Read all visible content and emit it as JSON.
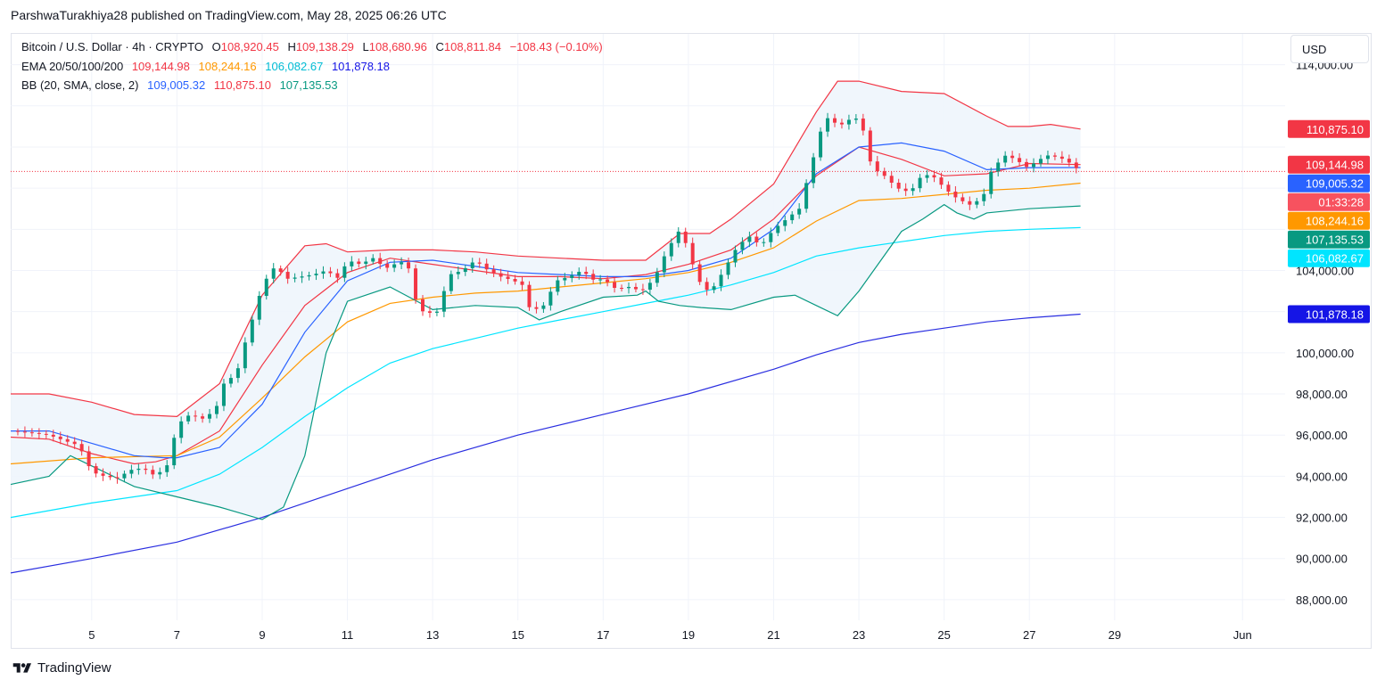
{
  "header": "ParshwaTurakhiya28 published on TradingView.com, May 28, 2025 06:26 UTC",
  "legend": {
    "symbol": "Bitcoin / U.S. Dollar · 4h · CRYPTO",
    "o_label": "O",
    "o": "108,920.45",
    "h_label": "H",
    "h": "109,138.29",
    "l_label": "L",
    "l": "108,680.96",
    "c_label": "C",
    "c": "108,811.84",
    "change": "−108.43 (−0.10%)",
    "ema_label": "EMA 20/50/100/200",
    "ema20": "109,144.98",
    "ema50": "108,244.16",
    "ema100": "106,082.67",
    "ema200": "101,878.18",
    "bb_label": "BB (20, SMA, close, 2)",
    "bb_basis": "109,005.32",
    "bb_upper": "110,875.10",
    "bb_lower": "107,135.53"
  },
  "currency": "USD",
  "countdown": "01:33:28",
  "footer": "TradingView",
  "colors": {
    "up": "#089981",
    "down": "#f23645",
    "ema20": "#f23645",
    "ema50": "#ff9800",
    "ema100": "#00e5ff",
    "ema200": "#2a2ee0",
    "bb_basis": "#2962ff",
    "bb_upper": "#f23645",
    "bb_lower": "#089981",
    "bb_fill": "#eef5fc"
  },
  "chart_data": {
    "type": "candlestick",
    "timeframe": "4h",
    "ylim": [
      87000,
      115500
    ],
    "y_ticks": [
      88000,
      90000,
      92000,
      94000,
      96000,
      98000,
      100000,
      104000,
      114000
    ],
    "y_tick_labels": [
      "88,000.00",
      "90,000.00",
      "92,000.00",
      "94,000.00",
      "96,000.00",
      "98,000.00",
      "100,000.00",
      "104,000.00",
      "114,000.00"
    ],
    "x_ticks": [
      "5",
      "7",
      "9",
      "11",
      "13",
      "15",
      "17",
      "19",
      "21",
      "23",
      "25",
      "27",
      "29",
      "Jun"
    ],
    "x_tick_days": [
      5,
      7,
      9,
      11,
      13,
      15,
      17,
      19,
      21,
      23,
      25,
      27,
      29,
      32
    ],
    "x_range_days": [
      3.1,
      33
    ],
    "price_labels": [
      {
        "text": "110,875.10",
        "value": 110875.1,
        "color": "#f23645"
      },
      {
        "text": "109,144.98",
        "value": 109144.98,
        "color": "#f23645"
      },
      {
        "text": "109,005.32",
        "value": 109005.32,
        "color": "#2962ff"
      },
      {
        "text": "01:33:28",
        "value": 108411,
        "color": "#f7525f"
      },
      {
        "text": "108,244.16",
        "value": 108244.16,
        "color": "#ff9800"
      },
      {
        "text": "107,135.53",
        "value": 107135.53,
        "color": "#089981"
      },
      {
        "text": "106,082.67",
        "value": 106082.67,
        "color": "#00e5ff"
      },
      {
        "text": "101,878.18",
        "value": 101878.18,
        "color": "#1515e6"
      }
    ],
    "current_price": 108811.84,
    "close_path": [
      [
        3.1,
        96200
      ],
      [
        3.6,
        96100
      ],
      [
        4.0,
        96000
      ],
      [
        4.4,
        95700
      ],
      [
        4.7,
        95500
      ],
      [
        5.0,
        94200
      ],
      [
        5.3,
        94000
      ],
      [
        5.6,
        93900
      ],
      [
        5.9,
        94300
      ],
      [
        6.2,
        94400
      ],
      [
        6.5,
        94000
      ],
      [
        6.8,
        94600
      ],
      [
        7.0,
        96500
      ],
      [
        7.3,
        97000
      ],
      [
        7.6,
        96800
      ],
      [
        7.9,
        97200
      ],
      [
        8.1,
        98500
      ],
      [
        8.4,
        99000
      ],
      [
        8.6,
        100500
      ],
      [
        8.9,
        102500
      ],
      [
        9.0,
        103300
      ],
      [
        9.3,
        104200
      ],
      [
        9.6,
        103600
      ],
      [
        9.9,
        103700
      ],
      [
        10.2,
        103800
      ],
      [
        10.5,
        104000
      ],
      [
        10.8,
        103600
      ],
      [
        11.0,
        104500
      ],
      [
        11.3,
        104300
      ],
      [
        11.6,
        104600
      ],
      [
        11.9,
        104100
      ],
      [
        12.2,
        104400
      ],
      [
        12.4,
        104400
      ],
      [
        12.6,
        102600
      ],
      [
        12.8,
        101900
      ],
      [
        13.1,
        102000
      ],
      [
        13.4,
        103800
      ],
      [
        13.7,
        104000
      ],
      [
        14.0,
        104500
      ],
      [
        14.3,
        104000
      ],
      [
        14.6,
        103700
      ],
      [
        14.9,
        103500
      ],
      [
        15.1,
        103300
      ],
      [
        15.3,
        102000
      ],
      [
        15.6,
        102300
      ],
      [
        15.9,
        103500
      ],
      [
        16.2,
        103700
      ],
      [
        16.5,
        104000
      ],
      [
        16.8,
        103500
      ],
      [
        17.0,
        103600
      ],
      [
        17.3,
        103100
      ],
      [
        17.6,
        103200
      ],
      [
        17.9,
        103000
      ],
      [
        18.2,
        103600
      ],
      [
        18.5,
        105000
      ],
      [
        18.8,
        106000
      ],
      [
        19.0,
        105000
      ],
      [
        19.2,
        103600
      ],
      [
        19.5,
        102900
      ],
      [
        19.8,
        103900
      ],
      [
        20.1,
        105000
      ],
      [
        20.4,
        105700
      ],
      [
        20.7,
        105200
      ],
      [
        21.0,
        106000
      ],
      [
        21.3,
        106500
      ],
      [
        21.6,
        107000
      ],
      [
        21.8,
        108500
      ],
      [
        22.0,
        110000
      ],
      [
        22.2,
        111500
      ],
      [
        22.4,
        111200
      ],
      [
        22.6,
        111100
      ],
      [
        22.9,
        111500
      ],
      [
        23.1,
        110800
      ],
      [
        23.3,
        109000
      ],
      [
        23.6,
        108600
      ],
      [
        23.9,
        108000
      ],
      [
        24.2,
        107800
      ],
      [
        24.5,
        108700
      ],
      [
        24.8,
        108500
      ],
      [
        25.0,
        108000
      ],
      [
        25.3,
        107500
      ],
      [
        25.6,
        107200
      ],
      [
        25.9,
        107500
      ],
      [
        26.1,
        108800
      ],
      [
        26.4,
        109600
      ],
      [
        26.7,
        109400
      ],
      [
        26.9,
        109000
      ],
      [
        27.1,
        109200
      ],
      [
        27.4,
        109600
      ],
      [
        27.7,
        109500
      ],
      [
        27.9,
        109300
      ],
      [
        28.2,
        108811.84
      ]
    ],
    "series": [
      {
        "name": "EMA 20",
        "color": "#f23645",
        "points": [
          [
            3.1,
            95900
          ],
          [
            4,
            95800
          ],
          [
            5,
            95100
          ],
          [
            6,
            94600
          ],
          [
            6.5,
            94700
          ],
          [
            7,
            95000
          ],
          [
            8,
            96200
          ],
          [
            9,
            99400
          ],
          [
            10,
            102300
          ],
          [
            11,
            103900
          ],
          [
            12,
            104600
          ],
          [
            13,
            104300
          ],
          [
            14,
            104000
          ],
          [
            15,
            103700
          ],
          [
            16,
            103700
          ],
          [
            17,
            103600
          ],
          [
            18,
            103800
          ],
          [
            19,
            104300
          ],
          [
            20,
            105000
          ],
          [
            21,
            106500
          ],
          [
            22,
            108600
          ],
          [
            23,
            110000
          ],
          [
            24,
            109400
          ],
          [
            25,
            108600
          ],
          [
            26,
            108700
          ],
          [
            27,
            109200
          ],
          [
            28.2,
            109145
          ]
        ]
      },
      {
        "name": "EMA 50",
        "color": "#ff9800",
        "points": [
          [
            3.1,
            94600
          ],
          [
            5,
            94900
          ],
          [
            7,
            95000
          ],
          [
            8,
            95900
          ],
          [
            9,
            97800
          ],
          [
            10,
            99800
          ],
          [
            11,
            101500
          ],
          [
            12,
            102400
          ],
          [
            13,
            102700
          ],
          [
            14,
            102900
          ],
          [
            15,
            103000
          ],
          [
            16,
            103200
          ],
          [
            17,
            103400
          ],
          [
            18,
            103600
          ],
          [
            19,
            103900
          ],
          [
            20,
            104400
          ],
          [
            21,
            105100
          ],
          [
            22,
            106400
          ],
          [
            23,
            107400
          ],
          [
            24,
            107500
          ],
          [
            25,
            107700
          ],
          [
            26,
            107900
          ],
          [
            27,
            108000
          ],
          [
            28.2,
            108244
          ]
        ]
      },
      {
        "name": "EMA 100",
        "color": "#00e5ff",
        "points": [
          [
            3.1,
            92000
          ],
          [
            5,
            92700
          ],
          [
            7,
            93300
          ],
          [
            8,
            94100
          ],
          [
            9,
            95400
          ],
          [
            10,
            96900
          ],
          [
            11,
            98300
          ],
          [
            12,
            99500
          ],
          [
            13,
            100200
          ],
          [
            14,
            100700
          ],
          [
            15,
            101200
          ],
          [
            16,
            101600
          ],
          [
            17,
            102000
          ],
          [
            18,
            102400
          ],
          [
            19,
            102800
          ],
          [
            20,
            103300
          ],
          [
            21,
            103900
          ],
          [
            22,
            104700
          ],
          [
            23,
            105100
          ],
          [
            24,
            105400
          ],
          [
            25,
            105700
          ],
          [
            26,
            105900
          ],
          [
            27,
            106000
          ],
          [
            28.2,
            106083
          ]
        ]
      },
      {
        "name": "EMA 200",
        "color": "#2a2ee0",
        "points": [
          [
            3.1,
            89300
          ],
          [
            5,
            90000
          ],
          [
            7,
            90800
          ],
          [
            9,
            92000
          ],
          [
            11,
            93400
          ],
          [
            13,
            94800
          ],
          [
            15,
            96000
          ],
          [
            17,
            97000
          ],
          [
            19,
            98000
          ],
          [
            21,
            99200
          ],
          [
            22,
            99900
          ],
          [
            23,
            100500
          ],
          [
            24,
            100900
          ],
          [
            25,
            101200
          ],
          [
            26,
            101500
          ],
          [
            27,
            101700
          ],
          [
            28.2,
            101878
          ]
        ]
      },
      {
        "name": "BB Basis",
        "color": "#2962ff",
        "points": [
          [
            3.1,
            96200
          ],
          [
            4,
            96200
          ],
          [
            5,
            95600
          ],
          [
            6,
            95000
          ],
          [
            6.7,
            94900
          ],
          [
            7,
            94900
          ],
          [
            8,
            95400
          ],
          [
            9,
            97500
          ],
          [
            10,
            101000
          ],
          [
            11,
            103500
          ],
          [
            12,
            104400
          ],
          [
            13,
            104500
          ],
          [
            14,
            104200
          ],
          [
            15,
            103900
          ],
          [
            16,
            103800
          ],
          [
            17,
            103700
          ],
          [
            18,
            103700
          ],
          [
            19,
            104000
          ],
          [
            20,
            104600
          ],
          [
            21,
            106000
          ],
          [
            22,
            108700
          ],
          [
            23,
            110000
          ],
          [
            24,
            110200
          ],
          [
            25,
            109800
          ],
          [
            26,
            108900
          ],
          [
            27,
            109000
          ],
          [
            28.2,
            109005
          ]
        ]
      },
      {
        "name": "BB Upper",
        "color": "#f23645",
        "points": [
          [
            3.1,
            98000
          ],
          [
            4,
            98000
          ],
          [
            5,
            97600
          ],
          [
            6,
            97000
          ],
          [
            7,
            96900
          ],
          [
            8,
            98500
          ],
          [
            9,
            102800
          ],
          [
            10,
            105200
          ],
          [
            10.5,
            105300
          ],
          [
            11,
            104900
          ],
          [
            12,
            105000
          ],
          [
            13,
            105000
          ],
          [
            14,
            104900
          ],
          [
            15,
            104700
          ],
          [
            16,
            104600
          ],
          [
            17,
            104500
          ],
          [
            18,
            104500
          ],
          [
            18.8,
            105800
          ],
          [
            19.5,
            105800
          ],
          [
            20,
            106500
          ],
          [
            21,
            108200
          ],
          [
            22,
            111700
          ],
          [
            22.5,
            113200
          ],
          [
            23,
            113200
          ],
          [
            24,
            112700
          ],
          [
            25,
            112600
          ],
          [
            26,
            111500
          ],
          [
            26.5,
            111000
          ],
          [
            27,
            111000
          ],
          [
            27.5,
            111100
          ],
          [
            28.2,
            110875
          ]
        ]
      },
      {
        "name": "BB Lower",
        "color": "#089981",
        "points": [
          [
            3.1,
            93600
          ],
          [
            4,
            94000
          ],
          [
            4.5,
            95000
          ],
          [
            5,
            94500
          ],
          [
            6,
            93500
          ],
          [
            7,
            93000
          ],
          [
            8,
            92500
          ],
          [
            9,
            91900
          ],
          [
            9.5,
            92500
          ],
          [
            10,
            95000
          ],
          [
            10.5,
            100000
          ],
          [
            11,
            102500
          ],
          [
            12,
            103200
          ],
          [
            13,
            102100
          ],
          [
            14,
            102300
          ],
          [
            15,
            102200
          ],
          [
            15.5,
            101600
          ],
          [
            16,
            102000
          ],
          [
            17,
            102700
          ],
          [
            17.8,
            102800
          ],
          [
            18,
            103000
          ],
          [
            18.3,
            102500
          ],
          [
            18.8,
            102300
          ],
          [
            19.3,
            102200
          ],
          [
            20,
            102100
          ],
          [
            21,
            102700
          ],
          [
            21.5,
            102800
          ],
          [
            22,
            102300
          ],
          [
            22.5,
            101800
          ],
          [
            23,
            103000
          ],
          [
            24,
            105900
          ],
          [
            24.5,
            106500
          ],
          [
            25,
            107200
          ],
          [
            25.3,
            106800
          ],
          [
            25.7,
            106500
          ],
          [
            26,
            106800
          ],
          [
            27,
            107000
          ],
          [
            28.2,
            107136
          ]
        ]
      }
    ]
  }
}
